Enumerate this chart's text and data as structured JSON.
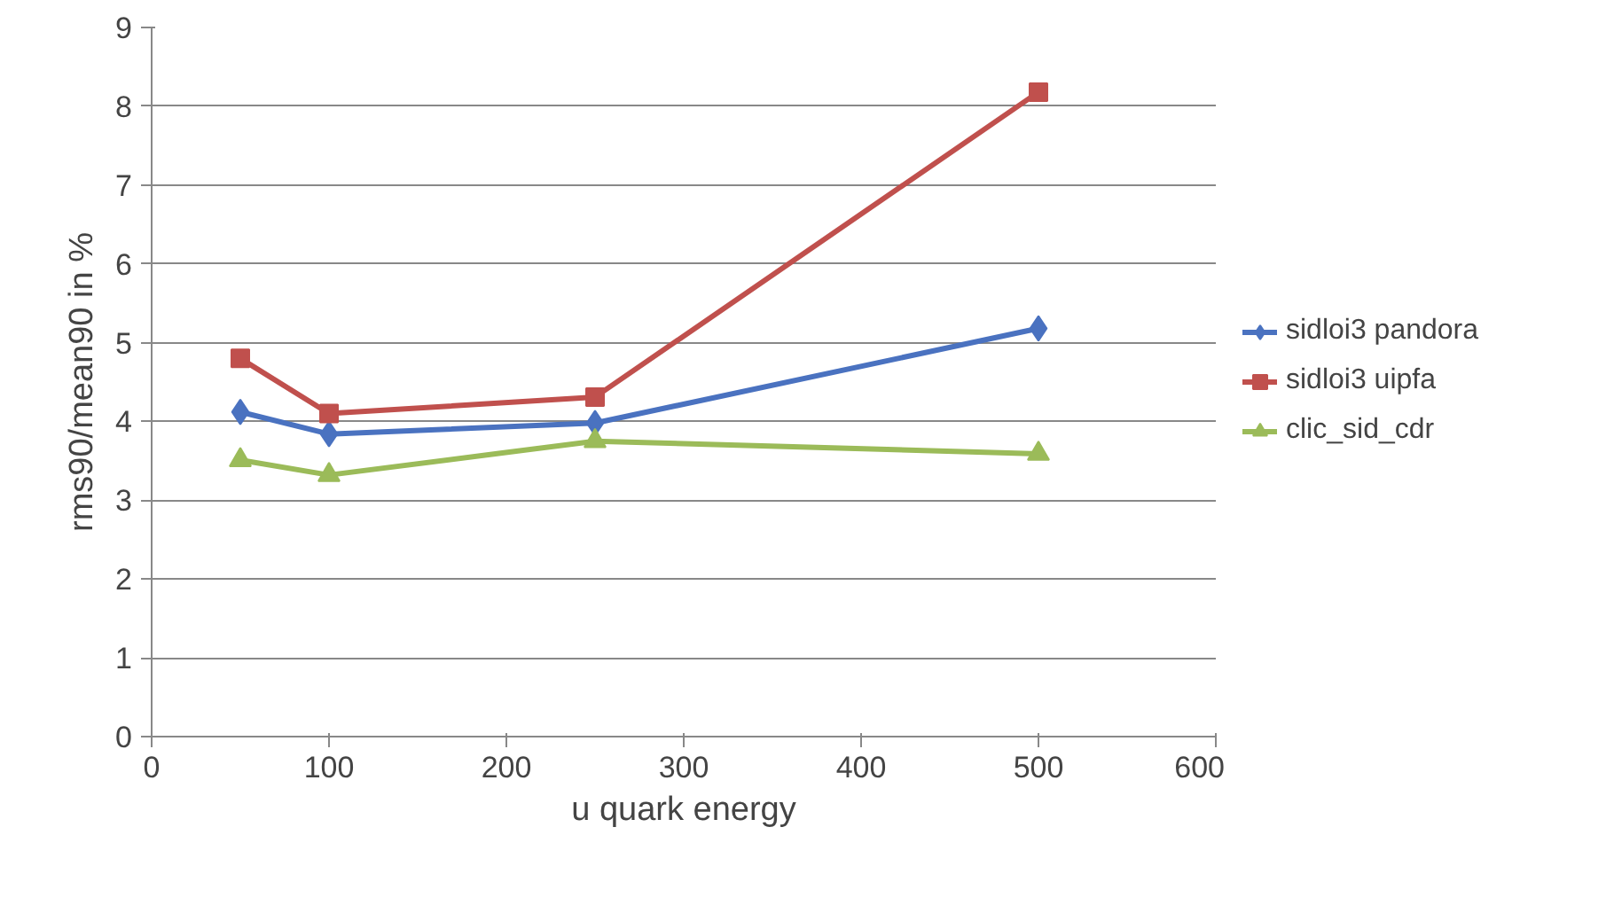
{
  "chart_data": {
    "type": "line",
    "xlabel": "u quark energy",
    "ylabel": "rms90/mean90 in %",
    "x": [
      50,
      100,
      250,
      500
    ],
    "series": [
      {
        "name": "sidloi3 pandora",
        "color": "#4a72c0",
        "marker": "diamond",
        "values": [
          4.12,
          3.84,
          3.98,
          5.18
        ]
      },
      {
        "name": "sidloi3 uipfa",
        "color": "#c0504d",
        "marker": "square",
        "values": [
          4.8,
          4.1,
          4.31,
          8.18
        ]
      },
      {
        "name": "clic_sid_cdr",
        "color": "#9bbb59",
        "marker": "triangle",
        "values": [
          3.51,
          3.32,
          3.75,
          3.59
        ]
      }
    ],
    "xlim": [
      0,
      600
    ],
    "xticks": [
      0,
      100,
      200,
      300,
      400,
      500,
      600
    ],
    "ylim": [
      0,
      9
    ],
    "yticks": [
      0,
      1,
      2,
      3,
      4,
      5,
      6,
      7,
      8,
      9
    ],
    "grid": "y",
    "legend": "right",
    "line_style": "solid"
  }
}
